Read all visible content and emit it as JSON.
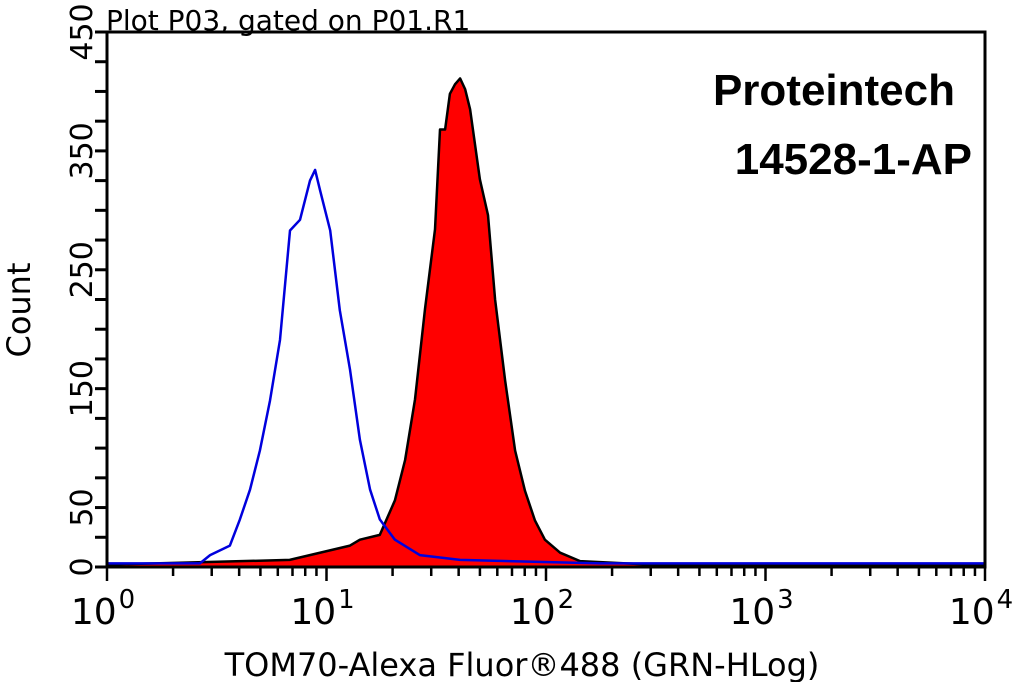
{
  "chart_data": {
    "type": "area",
    "title": "Plot P03, gated on P01.R1",
    "annotation": [
      "Proteintech",
      "14528-1-AP"
    ],
    "xlabel": "TOM70-Alexa Fluor®488 (GRN-HLog)",
    "ylabel": "Count",
    "xscale": "log",
    "xlim": [
      1,
      10000
    ],
    "ylim": [
      0,
      450
    ],
    "x_tick_labels": [
      {
        "base": "10",
        "exp": "0"
      },
      {
        "base": "10",
        "exp": "1"
      },
      {
        "base": "10",
        "exp": "2"
      },
      {
        "base": "10",
        "exp": "3"
      },
      {
        "base": "10",
        "exp": "4"
      }
    ],
    "y_tick_labels": [
      "0",
      "50",
      "150",
      "250",
      "350",
      "450"
    ],
    "grid": false,
    "series": [
      {
        "color": "#ff0000",
        "outline": "#000000",
        "filled": true,
        "x": [
          1,
          6.8,
          12.8,
          14.2,
          17.5,
          20.5,
          22.8,
          25.3,
          28.1,
          31.2,
          32.9,
          34.7,
          36.5,
          38.5,
          40.6,
          42.8,
          45.1,
          50.0,
          54.4,
          58.6,
          65.1,
          72.3,
          80.2,
          89.1,
          98.9,
          116,
          143,
          300,
          10000
        ],
        "y": [
          2,
          6,
          18,
          23,
          27,
          56,
          90,
          141,
          217,
          284,
          368,
          368,
          398,
          406,
          411,
          402,
          385,
          326,
          296,
          225,
          157,
          98,
          64,
          39,
          23,
          12,
          5,
          2,
          2
        ]
      },
      {
        "color": "#0000dd",
        "filled": false,
        "x": [
          1,
          2.65,
          2.95,
          3.63,
          4.03,
          4.48,
          4.97,
          5.53,
          6.14,
          6.82,
          7.57,
          8.41,
          8.87,
          9.34,
          10.4,
          11.5,
          12.8,
          14.2,
          15.8,
          17.5,
          20.5,
          26.6,
          40.6,
          176,
          10000
        ],
        "y": [
          3,
          3,
          10,
          18,
          40,
          65,
          98,
          140,
          191,
          283,
          292,
          325,
          334,
          317,
          283,
          216,
          166,
          107,
          65,
          40,
          23,
          10,
          6,
          3,
          3
        ]
      }
    ]
  }
}
